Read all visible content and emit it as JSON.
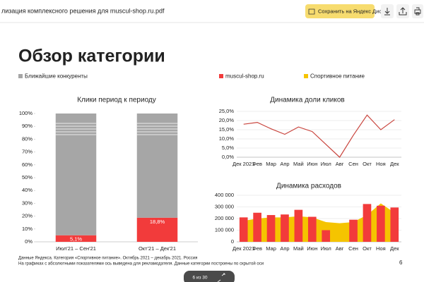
{
  "toolbar": {
    "file_name": "лизация комплексного решения для muscul-shop.ru.pdf",
    "save_button": "Сохранить на Яндекс Диск"
  },
  "slide": {
    "title": "Обзор категории",
    "footnotes": [
      "Данные Яндекса. Категория «Спортивное питание». Октябрь 2021 – декабрь 2021. Россия",
      "На графиках с абсолютными показателями ось выведена для рекламодателя. Данные категории построены по скрытой оси"
    ],
    "page_number": "6"
  },
  "pager": "6 из 30",
  "chart_data": [
    {
      "type": "bar",
      "stacked": true,
      "title": "Клики период к периоду",
      "categories": [
        "Июл'21 – Сен'21",
        "Окт'21 – Дек'21"
      ],
      "series": [
        {
          "color": "#f23b3b",
          "values": [
            5.1,
            18.8
          ],
          "value_labels": [
            "5,1%",
            "18,8%"
          ]
        },
        {
          "name": "Ближайшие конкуренты",
          "color": "#a6a6a6",
          "values": [
            94.9,
            81.2
          ]
        }
      ],
      "ylim": [
        0,
        100
      ],
      "yticks": [
        {
          "value": 0,
          "label": "0%"
        },
        {
          "value": 10,
          "label": "10%"
        },
        {
          "value": 20,
          "label": "20%"
        },
        {
          "value": 30,
          "label": "30%"
        },
        {
          "value": 40,
          "label": "40%"
        },
        {
          "value": 50,
          "label": "50%"
        },
        {
          "value": 60,
          "label": "60%"
        },
        {
          "value": 70,
          "label": "70%"
        },
        {
          "value": 80,
          "label": "80%"
        },
        {
          "value": 90,
          "label": "90%"
        },
        {
          "value": 100,
          "label": "100%"
        }
      ],
      "grid": false
    },
    {
      "type": "line",
      "title": "Динамика доли кликов",
      "categories": [
        "Дек 2021",
        "Фев",
        "Мар",
        "Апр",
        "Май",
        "Июн",
        "Июл",
        "Авг",
        "Сен",
        "Окт",
        "Ноя",
        "Дек"
      ],
      "series": [
        {
          "color": "#c9453e",
          "values": [
            18,
            19,
            15.5,
            12.5,
            16.5,
            14,
            7,
            0,
            12,
            23,
            15,
            20.5
          ]
        }
      ],
      "ylim": [
        0,
        25
      ],
      "yticks": [
        {
          "value": 0,
          "label": "0,0%"
        },
        {
          "value": 5,
          "label": "5,0%"
        },
        {
          "value": 10,
          "label": "10,0%"
        },
        {
          "value": 15,
          "label": "15,0%"
        },
        {
          "value": 20,
          "label": "20,0%"
        },
        {
          "value": 25,
          "label": "25,0%"
        }
      ],
      "grid": true
    },
    {
      "type": "bar",
      "title": "Динамика расходов",
      "categories": [
        "Дек 2021",
        "Фев",
        "Мар",
        "Апр",
        "Май",
        "Июн",
        "Июл",
        "Авг",
        "Сен",
        "Окт",
        "Ноя",
        "Дек"
      ],
      "series": [
        {
          "name": "muscul-shop.ru",
          "color": "#f23b3b",
          "values": [
            210000,
            250000,
            230000,
            235000,
            275000,
            215000,
            100000,
            null,
            190000,
            325000,
            310000,
            295000
          ]
        },
        {
          "name": "Спортивное питание",
          "type": "area",
          "color": "#f5c400",
          "values": [
            180000,
            200000,
            210000,
            210000,
            220000,
            210000,
            170000,
            160000,
            170000,
            230000,
            330000,
            250000
          ]
        }
      ],
      "ylim": [
        0,
        400000
      ],
      "yticks": [
        0,
        {
          "value": 100000,
          "label": "100 000"
        },
        {
          "value": 200000,
          "label": "200 000"
        },
        {
          "value": 300000,
          "label": "300 000"
        },
        {
          "value": 400000,
          "label": "400 000"
        }
      ],
      "grid": true
    }
  ]
}
